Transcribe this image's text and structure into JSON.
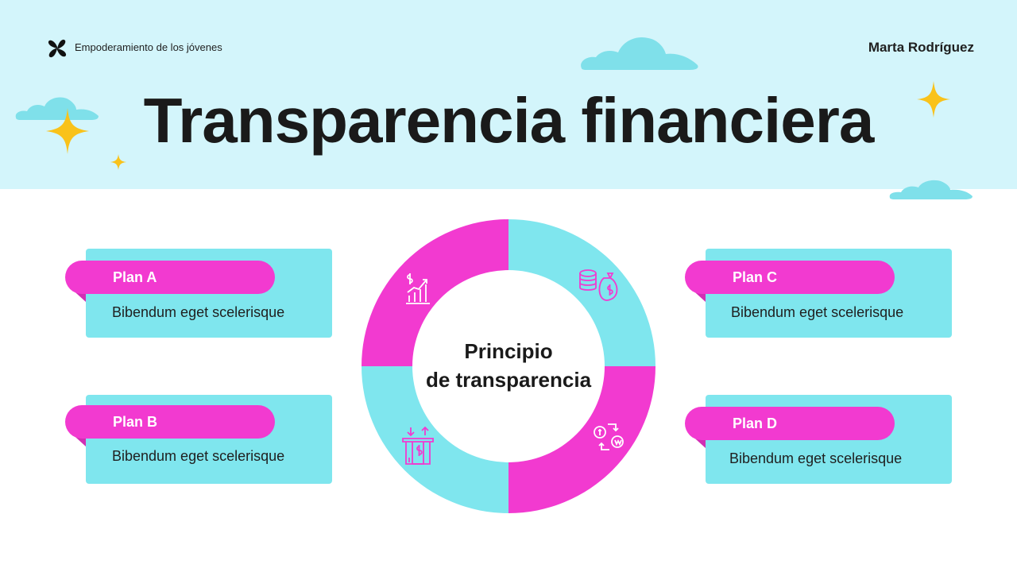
{
  "header": {
    "brand": "Empoderamiento de los jóvenes",
    "author": "Marta Rodríguez",
    "title": "Transparencia financiera"
  },
  "plans": [
    {
      "label": "Plan A",
      "desc": "Bibendum eget scelerisque"
    },
    {
      "label": "Plan B",
      "desc": "Bibendum eget scelerisque"
    },
    {
      "label": "Plan C",
      "desc": "Bibendum eget scelerisque"
    },
    {
      "label": "Plan D",
      "desc": "Bibendum eget scelerisque"
    }
  ],
  "center": {
    "line1": "Principio",
    "line2": "de transparencia"
  },
  "icons": [
    "growth-chart-icon",
    "money-bag-coins-icon",
    "money-exchange-icon",
    "cash-box-icon"
  ],
  "colors": {
    "pink": "#f23ad0",
    "cyan": "#7fe6ee",
    "sky": "#d3f5fb",
    "star": "#f9c21a"
  }
}
